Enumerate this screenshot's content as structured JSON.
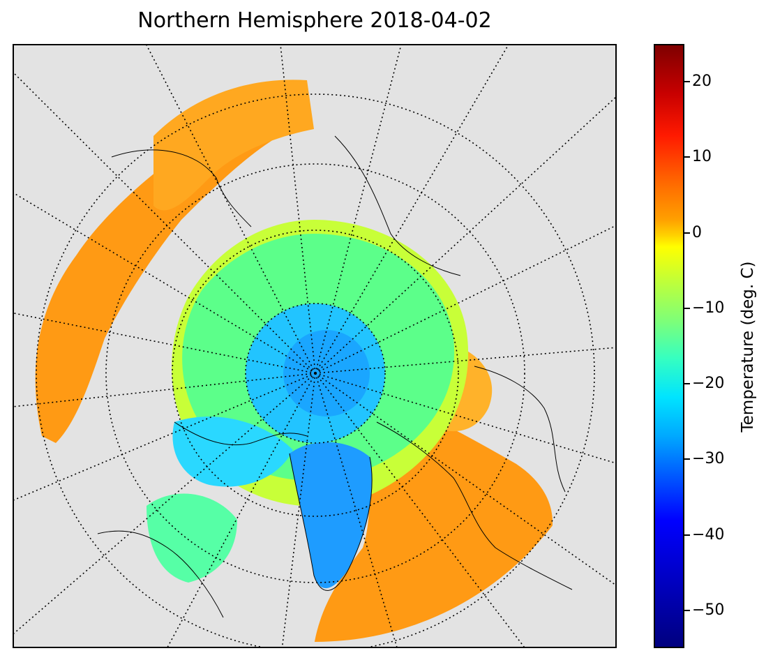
{
  "title": "Northern Hemisphere 2018-04-02",
  "map": {
    "projection": "north-polar-stereographic",
    "background_color": "#e3e3e3",
    "gridlines": "dotted meridians and parallels"
  },
  "colorbar": {
    "label": "Temperature (deg. C)",
    "colormap": "jet",
    "range": [
      -55,
      25
    ],
    "ticks": [
      {
        "value": 20,
        "label": "20"
      },
      {
        "value": 10,
        "label": "10"
      },
      {
        "value": 0,
        "label": "0"
      },
      {
        "value": -10,
        "label": "−10"
      },
      {
        "value": -20,
        "label": "−20"
      },
      {
        "value": -30,
        "label": "−30"
      },
      {
        "value": -40,
        "label": "−40"
      },
      {
        "value": -50,
        "label": "−50"
      }
    ]
  }
}
